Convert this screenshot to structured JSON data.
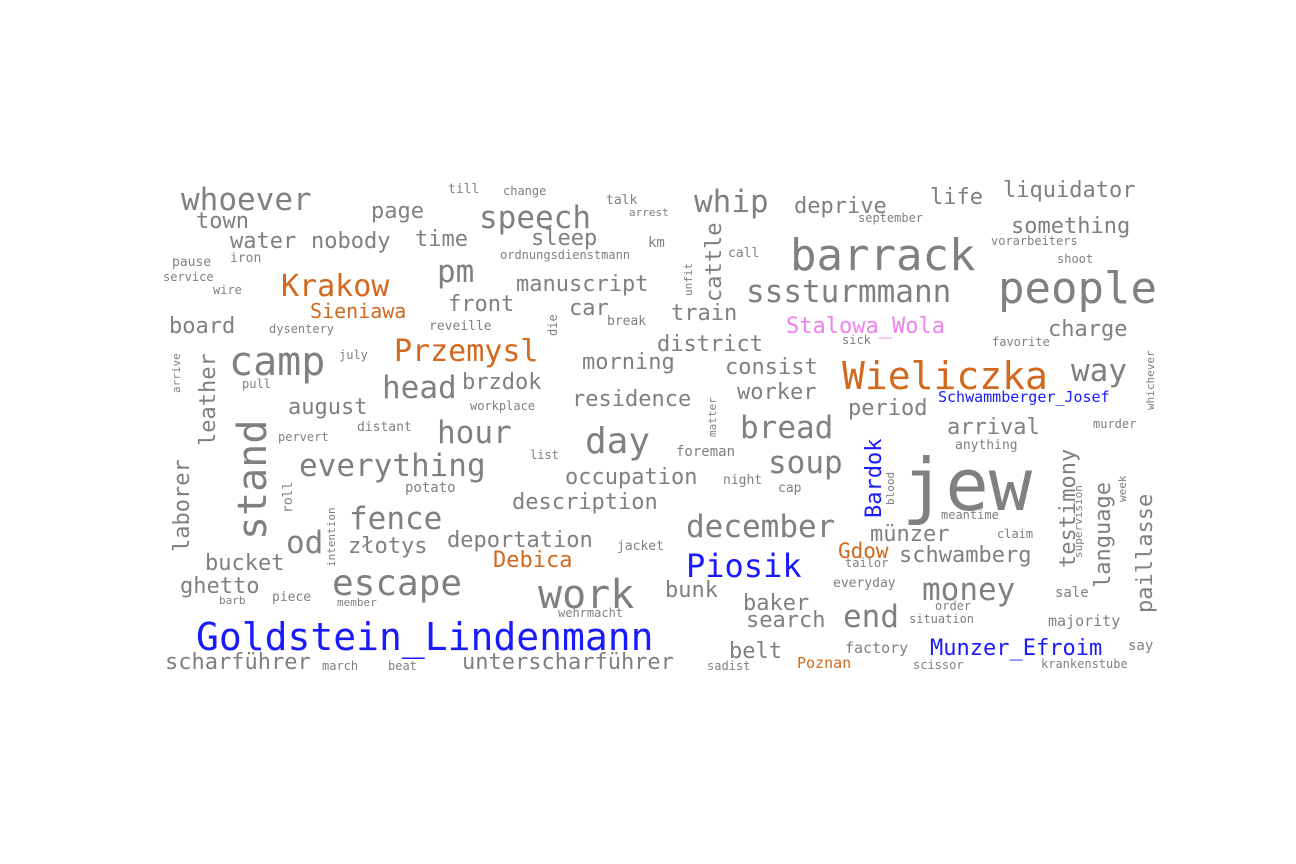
{
  "palette": {
    "default": "#808080",
    "person": "#1a1aff",
    "place": "#d2691e",
    "special": "#ee82ee"
  },
  "words": [
    {
      "text": "jew",
      "type": "default"
    },
    {
      "text": "Goldstein_Lindenmann",
      "type": "person"
    },
    {
      "text": "people",
      "type": "default"
    },
    {
      "text": "barrack",
      "type": "default"
    },
    {
      "text": "camp",
      "type": "default"
    },
    {
      "text": "stand",
      "type": "default"
    },
    {
      "text": "work",
      "type": "default"
    },
    {
      "text": "escape",
      "type": "default"
    },
    {
      "text": "Wieliczka",
      "type": "place"
    },
    {
      "text": "day",
      "type": "default"
    },
    {
      "text": "sssturmmann",
      "type": "default"
    },
    {
      "text": "whoever",
      "type": "default"
    },
    {
      "text": "everything",
      "type": "default"
    },
    {
      "text": "Piosik",
      "type": "person"
    },
    {
      "text": "december",
      "type": "default"
    },
    {
      "text": "speech",
      "type": "default"
    },
    {
      "text": "whip",
      "type": "default"
    },
    {
      "text": "Krakow",
      "type": "place"
    },
    {
      "text": "Przemysl",
      "type": "place"
    },
    {
      "text": "hour",
      "type": "default"
    },
    {
      "text": "bread",
      "type": "default"
    },
    {
      "text": "fence",
      "type": "default"
    },
    {
      "text": "money",
      "type": "default"
    },
    {
      "text": "head",
      "type": "default"
    },
    {
      "text": "pm",
      "type": "default"
    },
    {
      "text": "soup",
      "type": "default"
    },
    {
      "text": "way",
      "type": "default"
    },
    {
      "text": "end",
      "type": "default"
    },
    {
      "text": "od",
      "type": "default"
    },
    {
      "text": "Bardok",
      "type": "person"
    },
    {
      "text": "testimony",
      "type": "default"
    },
    {
      "text": "language",
      "type": "default"
    },
    {
      "text": "paillasse",
      "type": "default"
    },
    {
      "text": "occupation",
      "type": "default"
    },
    {
      "text": "description",
      "type": "default"
    },
    {
      "text": "deportation",
      "type": "default"
    },
    {
      "text": "liquidator",
      "type": "default"
    },
    {
      "text": "something",
      "type": "default"
    },
    {
      "text": "deprive",
      "type": "default"
    },
    {
      "text": "life",
      "type": "default"
    },
    {
      "text": "manuscript",
      "type": "default"
    },
    {
      "text": "morning",
      "type": "default"
    },
    {
      "text": "district",
      "type": "default"
    },
    {
      "text": "residence",
      "type": "default"
    },
    {
      "text": "consist",
      "type": "default"
    },
    {
      "text": "worker",
      "type": "default"
    },
    {
      "text": "period",
      "type": "default"
    },
    {
      "text": "arrival",
      "type": "default"
    },
    {
      "text": "charge",
      "type": "default"
    },
    {
      "text": "Stalowa_Wola",
      "type": "special"
    },
    {
      "text": "Sieniawa",
      "type": "place"
    },
    {
      "text": "front",
      "type": "default"
    },
    {
      "text": "train",
      "type": "default"
    },
    {
      "text": "car",
      "type": "default"
    },
    {
      "text": "cattle",
      "type": "default"
    },
    {
      "text": "sleep",
      "type": "default"
    },
    {
      "text": "time",
      "type": "default"
    },
    {
      "text": "page",
      "type": "default"
    },
    {
      "text": "water",
      "type": "default"
    },
    {
      "text": "nobody",
      "type": "default"
    },
    {
      "text": "town",
      "type": "default"
    },
    {
      "text": "board",
      "type": "default"
    },
    {
      "text": "leather",
      "type": "default"
    },
    {
      "text": "laborer",
      "type": "default"
    },
    {
      "text": "august",
      "type": "default"
    },
    {
      "text": "brzdok",
      "type": "default"
    },
    {
      "text": "złotys",
      "type": "default"
    },
    {
      "text": "bucket",
      "type": "default"
    },
    {
      "text": "ghetto",
      "type": "default"
    },
    {
      "text": "scharführer",
      "type": "default"
    },
    {
      "text": "unterscharführer",
      "type": "default"
    },
    {
      "text": "Debica",
      "type": "place"
    },
    {
      "text": "bunk",
      "type": "default"
    },
    {
      "text": "baker",
      "type": "default"
    },
    {
      "text": "search",
      "type": "default"
    },
    {
      "text": "belt",
      "type": "default"
    },
    {
      "text": "Gdow",
      "type": "place"
    },
    {
      "text": "schwamberg",
      "type": "default"
    },
    {
      "text": "münzer",
      "type": "default"
    },
    {
      "text": "Munzer_Efroim",
      "type": "person"
    },
    {
      "text": "Schwammberger_Josef",
      "type": "person"
    },
    {
      "text": "majority",
      "type": "default"
    },
    {
      "text": "factory",
      "type": "default"
    },
    {
      "text": "Poznan",
      "type": "place"
    },
    {
      "text": "krankenstube",
      "type": "default"
    },
    {
      "text": "scissor",
      "type": "default"
    },
    {
      "text": "sadist",
      "type": "default"
    },
    {
      "text": "march",
      "type": "default"
    },
    {
      "text": "beat",
      "type": "default"
    },
    {
      "text": "barb",
      "type": "default"
    },
    {
      "text": "piece",
      "type": "default"
    },
    {
      "text": "member",
      "type": "default"
    },
    {
      "text": "wehrmacht",
      "type": "default"
    },
    {
      "text": "jacket",
      "type": "default"
    },
    {
      "text": "foreman",
      "type": "default"
    },
    {
      "text": "night",
      "type": "default"
    },
    {
      "text": "cap",
      "type": "default"
    },
    {
      "text": "blood",
      "type": "default"
    },
    {
      "text": "list",
      "type": "default"
    },
    {
      "text": "potato",
      "type": "default"
    },
    {
      "text": "roll",
      "type": "default"
    },
    {
      "text": "intention",
      "type": "default"
    },
    {
      "text": "pervert",
      "type": "default"
    },
    {
      "text": "distant",
      "type": "default"
    },
    {
      "text": "workplace",
      "type": "default"
    },
    {
      "text": "matter",
      "type": "default"
    },
    {
      "text": "pull",
      "type": "default"
    },
    {
      "text": "july",
      "type": "default"
    },
    {
      "text": "arrive",
      "type": "default"
    },
    {
      "text": "dysentery",
      "type": "default"
    },
    {
      "text": "reveille",
      "type": "default"
    },
    {
      "text": "die",
      "type": "default"
    },
    {
      "text": "break",
      "type": "default"
    },
    {
      "text": "sick",
      "type": "default"
    },
    {
      "text": "favorite",
      "type": "default"
    },
    {
      "text": "whichever",
      "type": "default"
    },
    {
      "text": "murder",
      "type": "default"
    },
    {
      "text": "anything",
      "type": "default"
    },
    {
      "text": "week",
      "type": "default"
    },
    {
      "text": "meantime",
      "type": "default"
    },
    {
      "text": "claim",
      "type": "default"
    },
    {
      "text": "tailor",
      "type": "default"
    },
    {
      "text": "everyday",
      "type": "default"
    },
    {
      "text": "order",
      "type": "default"
    },
    {
      "text": "situation",
      "type": "default"
    },
    {
      "text": "sale",
      "type": "default"
    },
    {
      "text": "say",
      "type": "default"
    },
    {
      "text": "supervision",
      "type": "default"
    },
    {
      "text": "shoot",
      "type": "default"
    },
    {
      "text": "vorarbeiters",
      "type": "default"
    },
    {
      "text": "september",
      "type": "default"
    },
    {
      "text": "call",
      "type": "default"
    },
    {
      "text": "km",
      "type": "default"
    },
    {
      "text": "unfit",
      "type": "default"
    },
    {
      "text": "ordnungsdienstmann",
      "type": "default"
    },
    {
      "text": "arrest",
      "type": "default"
    },
    {
      "text": "talk",
      "type": "default"
    },
    {
      "text": "till",
      "type": "default"
    },
    {
      "text": "change",
      "type": "default"
    },
    {
      "text": "pause",
      "type": "default"
    },
    {
      "text": "iron",
      "type": "default"
    },
    {
      "text": "service",
      "type": "default"
    },
    {
      "text": "wire",
      "type": "default"
    }
  ]
}
